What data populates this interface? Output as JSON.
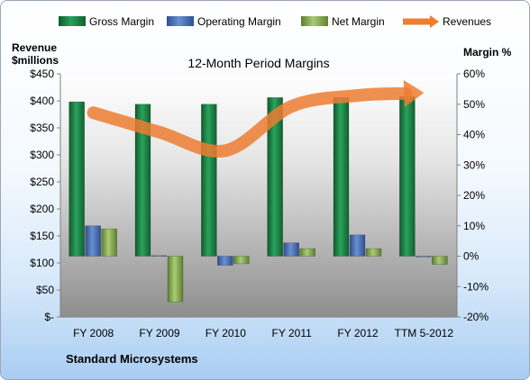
{
  "chart_data": {
    "type": "bar",
    "title": "12-Month Period Margins",
    "company": "Standard Microsystems",
    "left_axis_label": [
      "Revenue",
      "$millions"
    ],
    "right_axis_label": "Margin %",
    "categories": [
      "FY 2008",
      "FY 2009",
      "FY 2010",
      "FY 2011",
      "FY 2012",
      "TTM 5-2012"
    ],
    "left_ticks": [
      "$-",
      "$50",
      "$100",
      "$150",
      "$200",
      "$250",
      "$300",
      "$350",
      "$400",
      "$450"
    ],
    "right_ticks": [
      "-20%",
      "-10%",
      "0%",
      "10%",
      "20%",
      "30%",
      "40%",
      "50%",
      "60%"
    ],
    "left_ylim": [
      0,
      450
    ],
    "right_ylim": [
      -20,
      60
    ],
    "series": [
      {
        "name": "Gross Margin",
        "type": "bar",
        "axis": "right",
        "color": "#1e8a4a",
        "values": [
          50.8,
          50.0,
          50.0,
          52.2,
          52.2,
          52.5
        ]
      },
      {
        "name": "Operating Margin",
        "type": "bar",
        "axis": "right",
        "color": "#4472c4",
        "values": [
          10.0,
          0.2,
          -3.0,
          4.4,
          7.0,
          0.0
        ]
      },
      {
        "name": "Net Margin",
        "type": "bar",
        "axis": "right",
        "color": "#8cb454",
        "values": [
          9.0,
          -15.0,
          -2.5,
          2.5,
          2.5,
          -2.7
        ]
      },
      {
        "name": "Revenues",
        "type": "line",
        "axis": "left",
        "color": "#ed7d31",
        "values": [
          378,
          342,
          308,
          390,
          410,
          415
        ]
      }
    ],
    "grid": false,
    "legend": "top"
  }
}
